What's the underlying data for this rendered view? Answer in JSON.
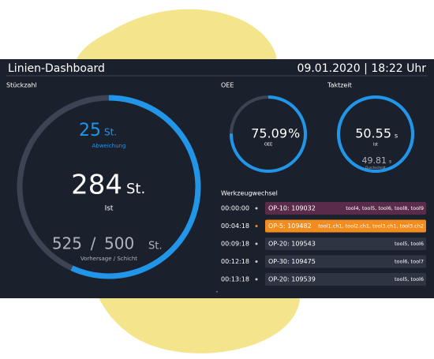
{
  "header": {
    "title": "Linien-Dashboard",
    "datetime": "09.01.2020 | 18:22 Uhr"
  },
  "stueckzahl": {
    "title": "Stückzahl",
    "deviation": 25,
    "unit": "St.",
    "deviation_label": "Abweichung",
    "actual": 284,
    "actual_label": "Ist",
    "forecast": 525,
    "separator": "/",
    "target": 500,
    "forecast_label": "Vorhersage / Schicht"
  },
  "oee": {
    "title": "OEE",
    "value": 75.09,
    "unit": "%",
    "label": "OEE"
  },
  "taktzeit": {
    "title": "Taktzeit",
    "actual": 50.55,
    "unit": "s",
    "actual_label": "Ist",
    "average": 49.81,
    "average_label": "Durchschnitt"
  },
  "werkzeugwechsel": {
    "title": "Werkzeugwechsel",
    "rows": [
      [
        "00:00:00",
        "OP-10: 109032",
        "tool4, tool5, tool6, tool8, tool9"
      ],
      [
        "00:04:18",
        "OP-5: 109482",
        "tool1.ch1, tool2.ch1, tool3.ch1, tool3.ch2"
      ],
      [
        "00:09:18",
        "OP-20: 109543",
        "tool5, tool6"
      ],
      [
        "00:12:18",
        "OP-30: 109475",
        "tool6, tool7"
      ],
      [
        "00:13:18",
        "OP-20: 109539",
        "tool5, tool6"
      ]
    ]
  }
}
